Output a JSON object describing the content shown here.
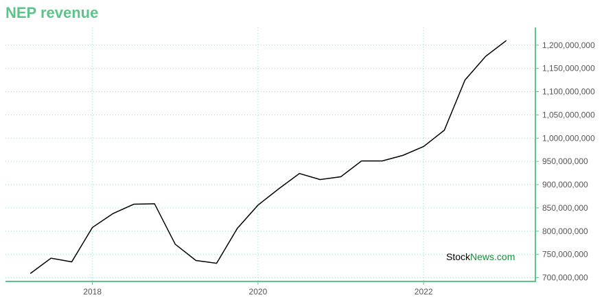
{
  "chart_data": {
    "type": "line",
    "title": "NEP revenue",
    "xlabel": "",
    "ylabel": "",
    "x": [
      2017.25,
      2017.5,
      2017.75,
      2018.0,
      2018.25,
      2018.5,
      2018.75,
      2019.0,
      2019.25,
      2019.5,
      2019.75,
      2020.0,
      2020.25,
      2020.5,
      2020.75,
      2021.0,
      2021.25,
      2021.5,
      2021.75,
      2022.0,
      2022.25,
      2022.5,
      2022.75,
      2023.0
    ],
    "y": [
      709000000,
      742000000,
      734000000,
      808000000,
      838000000,
      858000000,
      859000000,
      772000000,
      737000000,
      731000000,
      806000000,
      856000000,
      891000000,
      924000000,
      911000000,
      917000000,
      951000000,
      951000000,
      963000000,
      982000000,
      1017000000,
      1125000000,
      1176000000,
      1210000000
    ],
    "xlim": [
      2016.95,
      2023.35
    ],
    "ylim": [
      692000000,
      1238000000
    ],
    "x_ticks": [
      2018,
      2020,
      2022
    ],
    "x_tick_labels": [
      "2018",
      "2020",
      "2022"
    ],
    "y_ticks": [
      700000000,
      750000000,
      800000000,
      850000000,
      900000000,
      950000000,
      1000000000,
      1050000000,
      1100000000,
      1150000000,
      1200000000
    ],
    "y_tick_labels": [
      "700,000,000",
      "750,000,000",
      "800,000,000",
      "850,000,000",
      "900,000,000",
      "950,000,000",
      "1,000,000,000",
      "1,050,000,000",
      "1,100,000,000",
      "1,150,000,000",
      "1,200,000,000"
    ],
    "y_axis_position": "right",
    "grid": true,
    "colors": {
      "line": "#000000",
      "axis": "#5cc48a",
      "grid": "#9fd7c2",
      "title": "#5cc48a"
    }
  },
  "watermark": {
    "part1": "Stock",
    "part2": "News",
    "part3": ".com",
    "color_dark": "#000000",
    "color_green": "#1a8a3a"
  }
}
